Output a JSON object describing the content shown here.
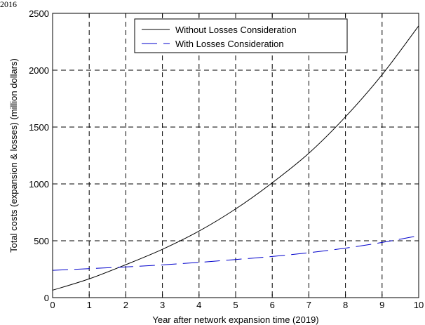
{
  "corner_text": "2016",
  "chart_data": {
    "type": "line",
    "xlabel": "Year after network expansion time (2019)",
    "ylabel": "Total costs (expansion & losses) (million dollars)",
    "xlim": [
      0,
      10
    ],
    "ylim": [
      0,
      2500
    ],
    "x_ticks": [
      0,
      1,
      2,
      3,
      4,
      5,
      6,
      7,
      8,
      9,
      10
    ],
    "y_ticks": [
      0,
      500,
      1000,
      1500,
      2000,
      2500
    ],
    "grid": true,
    "legend_position": "top-right",
    "x": [
      0,
      1,
      2,
      3,
      4,
      5,
      6,
      7,
      8,
      9,
      10
    ],
    "series": [
      {
        "name": "Without Losses Consideration",
        "color": "#000000",
        "line_style": "solid",
        "values": [
          65,
          165,
          290,
          425,
          585,
          780,
          1010,
          1270,
          1590,
          1960,
          2390
        ]
      },
      {
        "name": "With Losses Consideration",
        "color": "#0000cc",
        "line_style": "dashed",
        "values": [
          240,
          255,
          270,
          288,
          310,
          335,
          362,
          395,
          435,
          485,
          545
        ]
      }
    ]
  }
}
